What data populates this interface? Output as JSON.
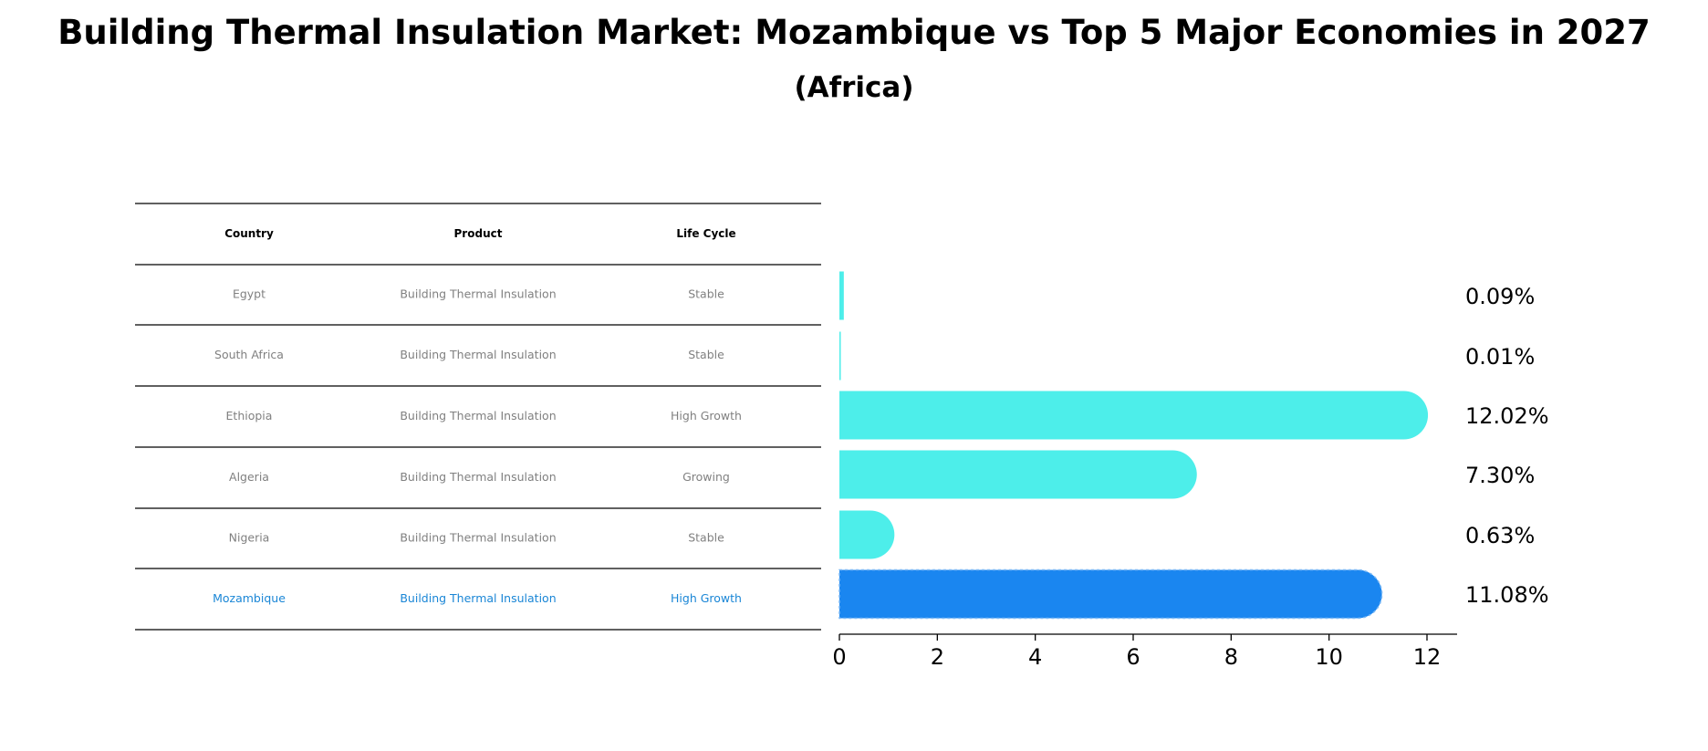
{
  "title": "Building Thermal Insulation Market: Mozambique vs Top 5 Major Economies in 2027",
  "subtitle": "(Africa)",
  "colors": {
    "bar": "#4deeea",
    "highlight": "#1a86f0",
    "row_text": "#808080",
    "highlight_text": "#1a86d6"
  },
  "table": {
    "headers": [
      "Country",
      "Product",
      "Life Cycle"
    ],
    "rows": [
      {
        "country": "Egypt",
        "product": "Building Thermal Insulation",
        "life_cycle": "Stable"
      },
      {
        "country": "South Africa",
        "product": "Building Thermal Insulation",
        "life_cycle": "Stable"
      },
      {
        "country": "Ethiopia",
        "product": "Building Thermal Insulation",
        "life_cycle": "High Growth"
      },
      {
        "country": "Algeria",
        "product": "Building Thermal Insulation",
        "life_cycle": "Growing"
      },
      {
        "country": "Nigeria",
        "product": "Building Thermal Insulation",
        "life_cycle": "Stable"
      },
      {
        "country": "Mozambique",
        "product": "Building Thermal Insulation",
        "life_cycle": "High Growth",
        "highlight": true
      }
    ]
  },
  "chart_data": {
    "type": "bar",
    "orientation": "horizontal",
    "categories": [
      "Egypt",
      "South Africa",
      "Ethiopia",
      "Algeria",
      "Nigeria",
      "Mozambique"
    ],
    "values": [
      0.09,
      0.01,
      12.02,
      7.3,
      0.63,
      11.08
    ],
    "value_labels": [
      "0.09%",
      "0.01%",
      "12.02%",
      "7.30%",
      "0.63%",
      "11.08%"
    ],
    "highlight_category": "Mozambique",
    "xlim": [
      0,
      12.6
    ],
    "xticks": [
      0,
      2,
      4,
      6,
      8,
      10,
      12
    ],
    "grid": false
  }
}
